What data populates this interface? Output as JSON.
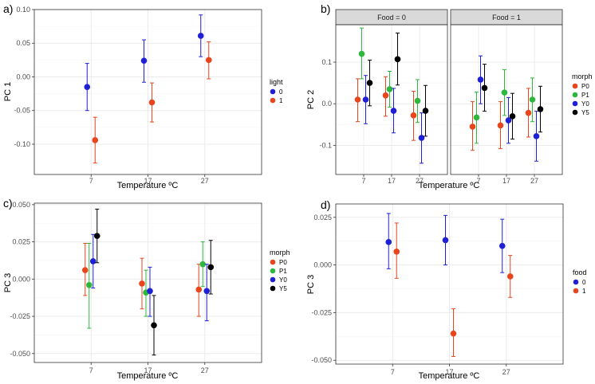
{
  "colors": {
    "light_0": "#1f1fd6",
    "light_1": "#e8451c",
    "P0": "#e8451c",
    "P1": "#2db83d",
    "Y0": "#1f1fd6",
    "Y5": "#000000",
    "food_0": "#1f1fd6",
    "food_1": "#e8451c",
    "grid": "#ebebeb",
    "frame": "#333333",
    "strip_bg": "#d9d9d9"
  },
  "chart_data": [
    {
      "panel_label": "a)",
      "type": "scatter",
      "xlabel": "Temperature  ºC",
      "ylabel": "PC 1",
      "categories": [
        "7",
        "17",
        "27"
      ],
      "ylim": [
        -0.145,
        0.1
      ],
      "yticks": [
        "-0.10",
        "-0.05",
        "0.00",
        "0.05",
        "0.10"
      ],
      "ytick_values": [
        -0.1,
        -0.05,
        0,
        0.05,
        0.1
      ],
      "legend_title": "light",
      "series": [
        {
          "name": "0",
          "color_key": "light_0",
          "dodge": -1,
          "values": [
            -0.015,
            0.024,
            0.061
          ],
          "lower": [
            -0.05,
            -0.008,
            0.03
          ],
          "upper": [
            0.02,
            0.055,
            0.092
          ]
        },
        {
          "name": "1",
          "color_key": "light_1",
          "dodge": 1,
          "values": [
            -0.094,
            -0.038,
            0.025
          ],
          "lower": [
            -0.128,
            -0.067,
            -0.003
          ],
          "upper": [
            -0.06,
            -0.009,
            0.052
          ]
        }
      ]
    },
    {
      "panel_label": "b)",
      "type": "scatter",
      "xlabel": "Temperature  ºC",
      "ylabel": "PC 2",
      "categories": [
        "7",
        "17",
        "27"
      ],
      "ylim": [
        -0.17,
        0.19
      ],
      "yticks": [
        "-0.1",
        "0.0",
        "0.1"
      ],
      "ytick_values": [
        -0.1,
        0,
        0.1
      ],
      "legend_title": "morph",
      "facets": [
        {
          "strip": "Food = 0",
          "series": [
            {
              "name": "P0",
              "color_key": "P0",
              "dodge": -1.5,
              "values": [
                0.01,
                0.02,
                -0.028
              ],
              "lower": [
                -0.043,
                -0.03,
                -0.088
              ],
              "upper": [
                0.06,
                0.065,
                0.03
              ]
            },
            {
              "name": "P1",
              "color_key": "P1",
              "dodge": -0.5,
              "values": [
                0.12,
                0.035,
                0.007
              ],
              "lower": [
                0.06,
                -0.008,
                -0.045
              ],
              "upper": [
                0.182,
                0.078,
                0.058
              ]
            },
            {
              "name": "Y0",
              "color_key": "Y0",
              "dodge": 0.5,
              "values": [
                0.01,
                -0.017,
                -0.082
              ],
              "lower": [
                -0.048,
                -0.07,
                -0.143
              ],
              "upper": [
                0.068,
                0.037,
                -0.022
              ]
            },
            {
              "name": "Y5",
              "color_key": "Y5",
              "dodge": 1.5,
              "values": [
                0.05,
                0.107,
                -0.017
              ],
              "lower": [
                -0.005,
                0.045,
                -0.078
              ],
              "upper": [
                0.105,
                0.17,
                0.044
              ]
            }
          ]
        },
        {
          "strip": "Food = 1",
          "series": [
            {
              "name": "P0",
              "color_key": "P0",
              "dodge": -1.5,
              "values": [
                -0.055,
                -0.052,
                -0.022
              ],
              "lower": [
                -0.112,
                -0.108,
                -0.08
              ],
              "upper": [
                0.005,
                0.005,
                0.037
              ]
            },
            {
              "name": "P1",
              "color_key": "P1",
              "dodge": -0.5,
              "values": [
                -0.033,
                0.027,
                0.01
              ],
              "lower": [
                -0.095,
                -0.028,
                -0.043
              ],
              "upper": [
                0.028,
                0.082,
                0.062
              ]
            },
            {
              "name": "Y0",
              "color_key": "Y0",
              "dodge": 0.5,
              "values": [
                0.058,
                -0.04,
                -0.078
              ],
              "lower": [
                0.0,
                -0.095,
                -0.138
              ],
              "upper": [
                0.115,
                0.015,
                -0.018
              ]
            },
            {
              "name": "Y5",
              "color_key": "Y5",
              "dodge": 1.5,
              "values": [
                0.038,
                -0.03,
                -0.013
              ],
              "lower": [
                -0.018,
                -0.085,
                -0.068
              ],
              "upper": [
                0.095,
                0.025,
                0.042
              ]
            }
          ]
        }
      ]
    },
    {
      "panel_label": "c)",
      "type": "scatter",
      "xlabel": "Temperature  ºC",
      "ylabel": "PC 3",
      "categories": [
        "7",
        "17",
        "27"
      ],
      "ylim": [
        -0.056,
        0.051
      ],
      "yticks": [
        "-0.050",
        "-0.025",
        "0.000",
        "0.025",
        "0.050"
      ],
      "ytick_values": [
        -0.05,
        -0.025,
        0,
        0.025,
        0.05
      ],
      "legend_title": "morph",
      "series": [
        {
          "name": "P0",
          "color_key": "P0",
          "dodge": -1.5,
          "values": [
            0.006,
            -0.003,
            -0.007
          ],
          "lower": [
            -0.011,
            -0.02,
            -0.025
          ],
          "upper": [
            0.024,
            0.014,
            0.01
          ]
        },
        {
          "name": "P1",
          "color_key": "P1",
          "dodge": -0.5,
          "values": [
            -0.004,
            -0.009,
            0.01
          ],
          "lower": [
            -0.033,
            -0.025,
            -0.005
          ],
          "upper": [
            0.024,
            0.006,
            0.025
          ]
        },
        {
          "name": "Y0",
          "color_key": "Y0",
          "dodge": 0.5,
          "values": [
            0.012,
            -0.008,
            -0.008
          ],
          "lower": [
            -0.006,
            -0.025,
            -0.028
          ],
          "upper": [
            0.03,
            0.008,
            0.01
          ]
        },
        {
          "name": "Y5",
          "color_key": "Y5",
          "dodge": 1.5,
          "values": [
            0.029,
            -0.031,
            0.008
          ],
          "lower": [
            0.011,
            -0.051,
            -0.01
          ],
          "upper": [
            0.047,
            -0.011,
            0.026
          ]
        }
      ]
    },
    {
      "panel_label": "d)",
      "type": "scatter",
      "xlabel": "Temperature  ºC",
      "ylabel": "PC 3",
      "categories": [
        "7",
        "17",
        "27"
      ],
      "ylim": [
        -0.052,
        0.032
      ],
      "yticks": [
        "-0.050",
        "-0.025",
        "0.000",
        "0.025"
      ],
      "ytick_values": [
        -0.05,
        -0.025,
        0,
        0.025
      ],
      "legend_title": "food",
      "series": [
        {
          "name": "0",
          "color_key": "food_0",
          "dodge": -1,
          "values": [
            0.012,
            0.013,
            0.01
          ],
          "lower": [
            -0.002,
            0.0,
            -0.004
          ],
          "upper": [
            0.027,
            0.026,
            0.024
          ]
        },
        {
          "name": "1",
          "color_key": "food_1",
          "dodge": 1,
          "values": [
            0.007,
            -0.036,
            -0.006
          ],
          "lower": [
            -0.007,
            -0.048,
            -0.017
          ],
          "upper": [
            0.022,
            -0.023,
            0.005
          ]
        }
      ]
    }
  ]
}
